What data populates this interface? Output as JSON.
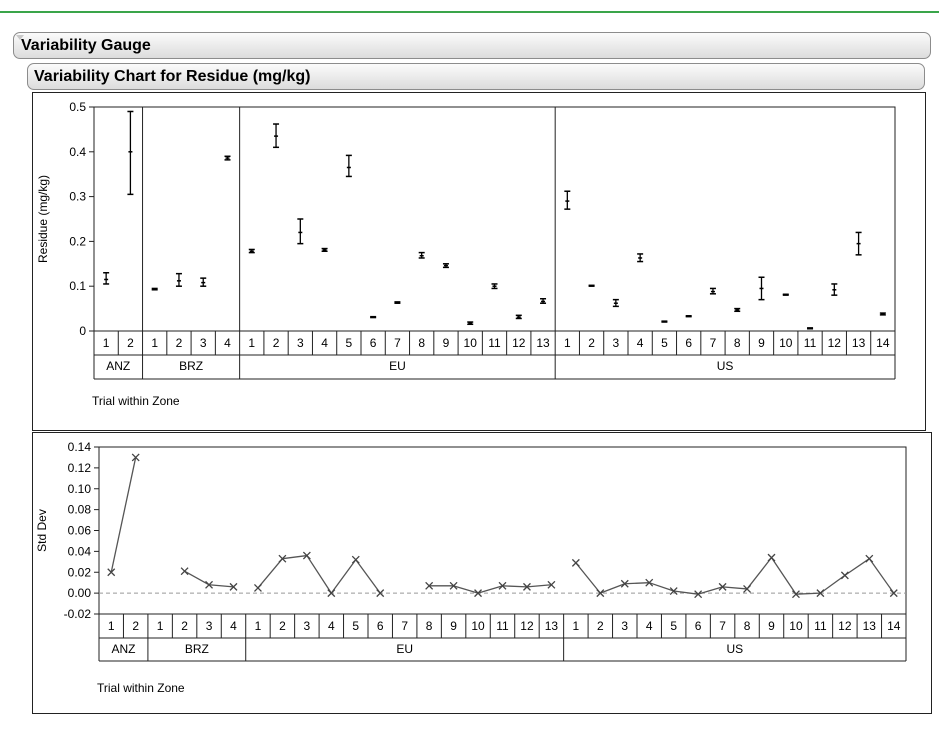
{
  "outline": {
    "section_title": "Variability Gauge",
    "chart_title": "Variability Chart for Residue (mg/kg)"
  },
  "chart_data": [
    {
      "type": "variability",
      "ylabel": "Residue (mg/kg)",
      "xlabel": "Trial within Zone",
      "ylim": [
        0,
        0.5
      ],
      "yticks": [
        0,
        0.1,
        0.2,
        0.3,
        0.4,
        0.5
      ],
      "ytick_labels": [
        "0",
        "0.1",
        "0.2",
        "0.3",
        "0.4",
        "0.5"
      ],
      "groups": [
        {
          "zone": "ANZ",
          "trials": [
            {
              "trial": "1",
              "min": 0.105,
              "mean": 0.115,
              "max": 0.13
            },
            {
              "trial": "2",
              "min": 0.305,
              "mean": 0.4,
              "max": 0.49
            }
          ]
        },
        {
          "zone": "BRZ",
          "trials": [
            {
              "trial": "1",
              "min": 0.092,
              "mean": 0.093,
              "max": 0.095
            },
            {
              "trial": "2",
              "min": 0.1,
              "mean": 0.112,
              "max": 0.128
            },
            {
              "trial": "3",
              "min": 0.1,
              "mean": 0.108,
              "max": 0.118
            },
            {
              "trial": "4",
              "min": 0.382,
              "mean": 0.386,
              "max": 0.39
            }
          ]
        },
        {
          "zone": "EU",
          "trials": [
            {
              "trial": "1",
              "min": 0.175,
              "mean": 0.178,
              "max": 0.182
            },
            {
              "trial": "2",
              "min": 0.41,
              "mean": 0.435,
              "max": 0.462
            },
            {
              "trial": "3",
              "min": 0.195,
              "mean": 0.22,
              "max": 0.25
            },
            {
              "trial": "4",
              "min": 0.178,
              "mean": 0.181,
              "max": 0.184
            },
            {
              "trial": "5",
              "min": 0.345,
              "mean": 0.365,
              "max": 0.392
            },
            {
              "trial": "6",
              "min": 0.03,
              "mean": 0.031,
              "max": 0.032
            },
            {
              "trial": "7",
              "min": 0.062,
              "mean": 0.063,
              "max": 0.065
            },
            {
              "trial": "8",
              "min": 0.163,
              "mean": 0.168,
              "max": 0.175
            },
            {
              "trial": "9",
              "min": 0.142,
              "mean": 0.146,
              "max": 0.15
            },
            {
              "trial": "10",
              "min": 0.015,
              "mean": 0.018,
              "max": 0.02
            },
            {
              "trial": "11",
              "min": 0.095,
              "mean": 0.1,
              "max": 0.105
            },
            {
              "trial": "12",
              "min": 0.028,
              "mean": 0.031,
              "max": 0.035
            },
            {
              "trial": "13",
              "min": 0.062,
              "mean": 0.066,
              "max": 0.072
            }
          ]
        },
        {
          "zone": "US",
          "trials": [
            {
              "trial": "1",
              "min": 0.272,
              "mean": 0.29,
              "max": 0.312
            },
            {
              "trial": "2",
              "min": 0.1,
              "mean": 0.101,
              "max": 0.102
            },
            {
              "trial": "3",
              "min": 0.055,
              "mean": 0.062,
              "max": 0.07
            },
            {
              "trial": "4",
              "min": 0.155,
              "mean": 0.163,
              "max": 0.172
            },
            {
              "trial": "5",
              "min": 0.02,
              "mean": 0.021,
              "max": 0.022
            },
            {
              "trial": "6",
              "min": 0.032,
              "mean": 0.033,
              "max": 0.034
            },
            {
              "trial": "7",
              "min": 0.083,
              "mean": 0.088,
              "max": 0.095
            },
            {
              "trial": "8",
              "min": 0.044,
              "mean": 0.047,
              "max": 0.05
            },
            {
              "trial": "9",
              "min": 0.07,
              "mean": 0.095,
              "max": 0.12
            },
            {
              "trial": "10",
              "min": 0.08,
              "mean": 0.081,
              "max": 0.082
            },
            {
              "trial": "11",
              "min": 0.005,
              "mean": 0.006,
              "max": 0.007
            },
            {
              "trial": "12",
              "min": 0.08,
              "mean": 0.092,
              "max": 0.105
            },
            {
              "trial": "13",
              "min": 0.17,
              "mean": 0.195,
              "max": 0.22
            },
            {
              "trial": "14",
              "min": 0.036,
              "mean": 0.038,
              "max": 0.04
            }
          ]
        }
      ]
    },
    {
      "type": "line",
      "ylabel": "Std Dev",
      "xlabel": "Trial within Zone",
      "ylim": [
        -0.02,
        0.14
      ],
      "yticks": [
        -0.02,
        0,
        0.02,
        0.04,
        0.06,
        0.08,
        0.1,
        0.12,
        0.14
      ],
      "ytick_labels": [
        "-0.02",
        "0.00",
        "0.02",
        "0.04",
        "0.06",
        "0.08",
        "0.10",
        "0.12",
        "0.14"
      ],
      "reference_line": 0,
      "groups": [
        {
          "zone": "ANZ",
          "trials": [
            "1",
            "2"
          ],
          "values": [
            0.02,
            0.13
          ]
        },
        {
          "zone": "BRZ",
          "trials": [
            "1",
            "2",
            "3",
            "4"
          ],
          "values": [
            null,
            0.021,
            0.008,
            0.006
          ]
        },
        {
          "zone": "EU",
          "trials": [
            "1",
            "2",
            "3",
            "4",
            "5",
            "6",
            "7",
            "8",
            "9",
            "10",
            "11",
            "12",
            "13"
          ],
          "values": [
            0.005,
            0.033,
            0.036,
            0.0,
            0.032,
            0.0,
            null,
            0.007,
            0.007,
            0.0,
            0.007,
            0.006,
            0.008
          ]
        },
        {
          "zone": "US",
          "trials": [
            "1",
            "2",
            "3",
            "4",
            "5",
            "6",
            "7",
            "8",
            "9",
            "10",
            "11",
            "12",
            "13",
            "14"
          ],
          "values": [
            0.029,
            0.0,
            0.009,
            0.01,
            0.002,
            -0.001,
            0.006,
            0.004,
            0.034,
            -0.001,
            0.0,
            0.017,
            0.033,
            0.0
          ]
        }
      ]
    }
  ]
}
